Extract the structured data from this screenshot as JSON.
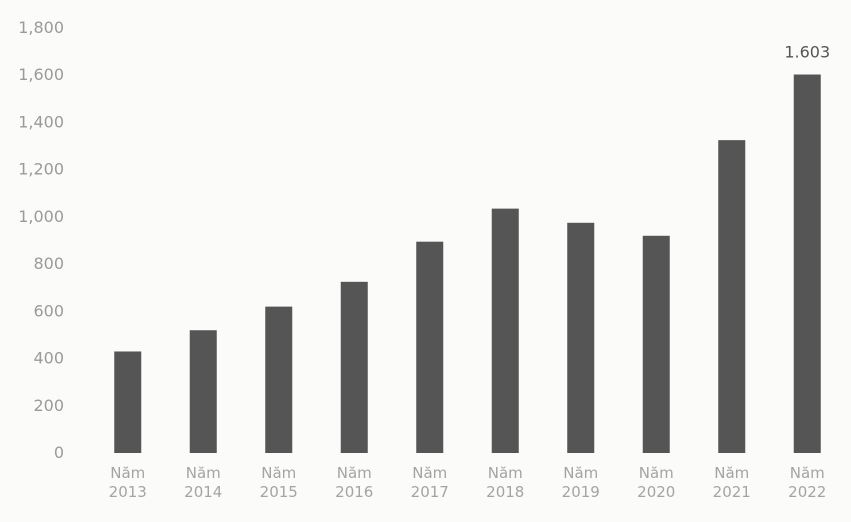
{
  "chart_data": {
    "type": "bar",
    "title": "",
    "xlabel": "",
    "ylabel": "",
    "categories": [
      [
        "Năm",
        "2013"
      ],
      [
        "Năm",
        "2014"
      ],
      [
        "Năm",
        "2015"
      ],
      [
        "Năm",
        "2016"
      ],
      [
        "Năm",
        "2017"
      ],
      [
        "Năm",
        "2018"
      ],
      [
        "Năm",
        "2019"
      ],
      [
        "Năm",
        "2020"
      ],
      [
        "Năm",
        "2021"
      ],
      [
        "Năm",
        "2022"
      ]
    ],
    "values": [
      430,
      520,
      620,
      725,
      895,
      1035,
      975,
      920,
      1325,
      1603
    ],
    "ylim": [
      0,
      1800
    ],
    "yticks": [
      0,
      200,
      400,
      600,
      800,
      1000,
      1200,
      1400,
      1600,
      1800
    ],
    "ytick_labels": [
      "0",
      "200",
      "400",
      "600",
      "800",
      "1,000",
      "1,200",
      "1,400",
      "1,600",
      "1,800"
    ],
    "data_labels": [
      {
        "index": 9,
        "text": "1.603"
      }
    ],
    "grid": false,
    "legend": "none",
    "colors": {
      "bar": "#555555",
      "tick_text": "#9a9a9a",
      "data_label": "#555555"
    }
  }
}
